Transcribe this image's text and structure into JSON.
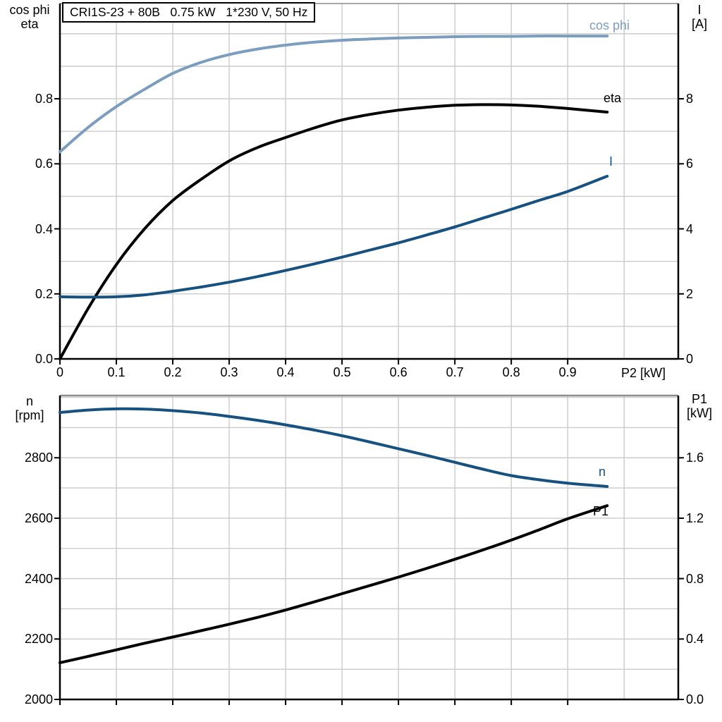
{
  "colors": {
    "light_blue": "#7D9DBE",
    "dark_blue": "#17517F",
    "black": "#000000",
    "grid": "#CBCBCB",
    "frame_top_gray": "#8C8C8C"
  },
  "chart_data": [
    {
      "type": "line",
      "title": "CRI1S-23 + 80B   0.75 kW   1*230 V, 50 Hz",
      "x_label": "P2 [kW]",
      "xlim": [
        0,
        1.096
      ],
      "grid": true,
      "x_grid_step": 0.1,
      "x_ticks": [
        "0",
        "0.1",
        "0.2",
        "0.3",
        "0.4",
        "0.5",
        "0.6",
        "0.7",
        "0.8",
        "0.9"
      ],
      "x_tick_values": [
        0,
        0.1,
        0.2,
        0.3,
        0.4,
        0.5,
        0.6,
        0.7,
        0.8,
        0.9
      ],
      "left_axis": {
        "header": [
          "cos phi",
          "eta"
        ],
        "lim": [
          0,
          1.093
        ],
        "grid_step": 0.1,
        "ticks": [
          "0.0",
          "0.2",
          "0.4",
          "0.6",
          "0.8"
        ],
        "tick_values": [
          0,
          0.2,
          0.4,
          0.6,
          0.8
        ]
      },
      "right_axis": {
        "header": [
          "I",
          "[A]"
        ],
        "lim": [
          0,
          10.93
        ],
        "ticks": [
          "0",
          "2",
          "4",
          "6",
          "8"
        ],
        "tick_values": [
          0,
          2,
          4,
          6,
          8
        ]
      },
      "x": [
        0,
        0.05,
        0.1,
        0.15,
        0.2,
        0.25,
        0.3,
        0.35,
        0.4,
        0.45,
        0.5,
        0.55,
        0.6,
        0.65,
        0.7,
        0.75,
        0.8,
        0.85,
        0.9,
        0.97
      ],
      "series": [
        {
          "name": "cos phi",
          "label": "cos phi",
          "axis": "left",
          "color_key": "light_blue",
          "values": [
            0.637,
            0.712,
            0.776,
            0.829,
            0.878,
            0.912,
            0.936,
            0.953,
            0.965,
            0.974,
            0.98,
            0.984,
            0.987,
            0.989,
            0.991,
            0.992,
            0.992,
            0.993,
            0.993,
            0.993
          ]
        },
        {
          "name": "eta",
          "label": "eta",
          "axis": "left",
          "color_key": "black",
          "values": [
            0,
            0.155,
            0.29,
            0.4,
            0.487,
            0.552,
            0.609,
            0.65,
            0.681,
            0.71,
            0.735,
            0.752,
            0.765,
            0.774,
            0.78,
            0.782,
            0.781,
            0.777,
            0.77,
            0.759
          ]
        },
        {
          "name": "I",
          "label": "I",
          "axis": "right",
          "color_key": "dark_blue",
          "values": [
            1.91,
            1.9,
            1.91,
            1.97,
            2.08,
            2.21,
            2.36,
            2.53,
            2.72,
            2.92,
            3.13,
            3.35,
            3.57,
            3.81,
            4.06,
            4.33,
            4.6,
            4.88,
            5.15,
            5.62
          ]
        }
      ]
    },
    {
      "type": "line",
      "title": "",
      "x_label": "",
      "xlim": [
        0,
        1.096
      ],
      "grid": true,
      "x_grid_step": 0.1,
      "x_ticks": [],
      "x_tick_values": [
        0,
        0.1,
        0.2,
        0.3,
        0.4,
        0.5,
        0.6,
        0.7,
        0.8,
        0.9
      ],
      "left_axis": {
        "header": [
          "n",
          "[rpm]"
        ],
        "lim": [
          2000,
          3006
        ],
        "grid_step": 100,
        "ticks": [
          "2000",
          "2200",
          "2400",
          "2600",
          "2800"
        ],
        "tick_values": [
          2000,
          2200,
          2400,
          2600,
          2800
        ]
      },
      "right_axis": {
        "header": [
          "P1",
          "[kW]"
        ],
        "lim": [
          0,
          2.012
        ],
        "ticks": [
          "0.0",
          "0.4",
          "0.8",
          "1.2",
          "1.6"
        ],
        "tick_values": [
          0,
          0.4,
          0.8,
          1.2,
          1.6
        ]
      },
      "x": [
        0,
        0.05,
        0.1,
        0.15,
        0.2,
        0.25,
        0.3,
        0.35,
        0.4,
        0.45,
        0.5,
        0.55,
        0.6,
        0.65,
        0.7,
        0.75,
        0.8,
        0.85,
        0.9,
        0.97
      ],
      "series": [
        {
          "name": "n",
          "label": "n",
          "axis": "left",
          "color_key": "dark_blue",
          "values": [
            2950,
            2958,
            2962,
            2961,
            2956,
            2948,
            2937,
            2924,
            2909,
            2892,
            2873,
            2852,
            2830,
            2808,
            2785,
            2762,
            2741,
            2727,
            2716,
            2705
          ]
        },
        {
          "name": "P1",
          "label": "P1",
          "axis": "right",
          "color_key": "black",
          "values": [
            0.243,
            0.285,
            0.328,
            0.372,
            0.413,
            0.455,
            0.498,
            0.543,
            0.592,
            0.645,
            0.7,
            0.755,
            0.81,
            0.868,
            0.928,
            0.99,
            1.055,
            1.124,
            1.196,
            1.283
          ]
        }
      ]
    }
  ]
}
